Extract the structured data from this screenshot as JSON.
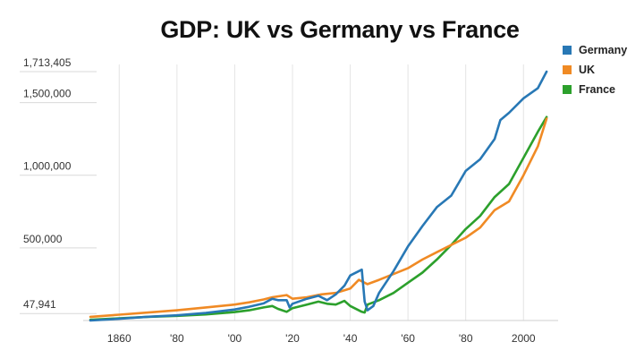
{
  "chart_data": {
    "type": "line",
    "title": "GDP: UK vs Germany vs France",
    "xlabel": "",
    "ylabel": "",
    "xlim": [
      1850,
      2012
    ],
    "ylim": [
      0,
      1713405
    ],
    "x_ticks": [
      {
        "value": 1860,
        "label": "1860"
      },
      {
        "value": 1880,
        "label": "'80"
      },
      {
        "value": 1900,
        "label": "'00"
      },
      {
        "value": 1920,
        "label": "'20"
      },
      {
        "value": 1940,
        "label": "'40"
      },
      {
        "value": 1960,
        "label": "'60"
      },
      {
        "value": 1980,
        "label": "'80"
      },
      {
        "value": 2000,
        "label": "2000"
      }
    ],
    "y_ticks": [
      {
        "value": 47941,
        "label": "47,941"
      },
      {
        "value": 500000,
        "label": "500,000"
      },
      {
        "value": 1000000,
        "label": "1,000,000"
      },
      {
        "value": 1500000,
        "label": "1,500,000"
      },
      {
        "value": 1713405,
        "label": "1,713,405"
      }
    ],
    "grid": {
      "vertical": true,
      "horizontal_baseline": true
    },
    "legend_position": "top-right",
    "series": [
      {
        "name": "Germany",
        "color": "#2878b5",
        "points": [
          [
            1850,
            0
          ],
          [
            1860,
            12000
          ],
          [
            1870,
            26000
          ],
          [
            1880,
            36000
          ],
          [
            1890,
            52000
          ],
          [
            1900,
            76000
          ],
          [
            1905,
            95000
          ],
          [
            1910,
            118000
          ],
          [
            1913,
            150000
          ],
          [
            1915,
            140000
          ],
          [
            1918,
            140000
          ],
          [
            1919,
            90000
          ],
          [
            1920,
            115000
          ],
          [
            1925,
            150000
          ],
          [
            1929,
            170000
          ],
          [
            1932,
            140000
          ],
          [
            1935,
            180000
          ],
          [
            1938,
            240000
          ],
          [
            1940,
            310000
          ],
          [
            1944,
            350000
          ],
          [
            1945,
            130000
          ],
          [
            1946,
            70000
          ],
          [
            1948,
            100000
          ],
          [
            1950,
            190000
          ],
          [
            1955,
            340000
          ],
          [
            1960,
            510000
          ],
          [
            1965,
            650000
          ],
          [
            1970,
            780000
          ],
          [
            1975,
            860000
          ],
          [
            1980,
            1030000
          ],
          [
            1985,
            1110000
          ],
          [
            1990,
            1250000
          ],
          [
            1992,
            1380000
          ],
          [
            1995,
            1430000
          ],
          [
            2000,
            1530000
          ],
          [
            2005,
            1600000
          ],
          [
            2008,
            1713405
          ]
        ]
      },
      {
        "name": "UK",
        "color": "#f08a24",
        "points": [
          [
            1850,
            25000
          ],
          [
            1860,
            40000
          ],
          [
            1870,
            55000
          ],
          [
            1880,
            70000
          ],
          [
            1890,
            90000
          ],
          [
            1900,
            110000
          ],
          [
            1905,
            125000
          ],
          [
            1910,
            145000
          ],
          [
            1913,
            160000
          ],
          [
            1918,
            175000
          ],
          [
            1920,
            150000
          ],
          [
            1925,
            160000
          ],
          [
            1930,
            180000
          ],
          [
            1935,
            190000
          ],
          [
            1940,
            220000
          ],
          [
            1943,
            280000
          ],
          [
            1946,
            250000
          ],
          [
            1950,
            280000
          ],
          [
            1955,
            320000
          ],
          [
            1960,
            360000
          ],
          [
            1965,
            420000
          ],
          [
            1970,
            470000
          ],
          [
            1975,
            520000
          ],
          [
            1980,
            570000
          ],
          [
            1985,
            640000
          ],
          [
            1990,
            760000
          ],
          [
            1995,
            820000
          ],
          [
            2000,
            1000000
          ],
          [
            2005,
            1200000
          ],
          [
            2008,
            1390000
          ]
        ]
      },
      {
        "name": "France",
        "color": "#2ca02c",
        "points": [
          [
            1850,
            5000
          ],
          [
            1860,
            15000
          ],
          [
            1870,
            25000
          ],
          [
            1880,
            32000
          ],
          [
            1890,
            42000
          ],
          [
            1900,
            58000
          ],
          [
            1905,
            70000
          ],
          [
            1910,
            90000
          ],
          [
            1913,
            100000
          ],
          [
            1915,
            80000
          ],
          [
            1918,
            60000
          ],
          [
            1920,
            85000
          ],
          [
            1925,
            110000
          ],
          [
            1929,
            130000
          ],
          [
            1932,
            115000
          ],
          [
            1935,
            110000
          ],
          [
            1938,
            135000
          ],
          [
            1940,
            100000
          ],
          [
            1944,
            60000
          ],
          [
            1945,
            55000
          ],
          [
            1946,
            110000
          ],
          [
            1950,
            140000
          ],
          [
            1955,
            190000
          ],
          [
            1960,
            260000
          ],
          [
            1965,
            330000
          ],
          [
            1970,
            420000
          ],
          [
            1975,
            520000
          ],
          [
            1980,
            630000
          ],
          [
            1985,
            720000
          ],
          [
            1990,
            850000
          ],
          [
            1995,
            940000
          ],
          [
            2000,
            1120000
          ],
          [
            2005,
            1300000
          ],
          [
            2008,
            1400000
          ]
        ]
      }
    ]
  }
}
